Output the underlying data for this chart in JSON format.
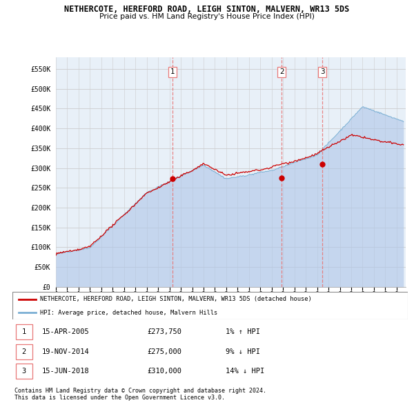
{
  "title": "NETHERCOTE, HEREFORD ROAD, LEIGH SINTON, MALVERN, WR13 5DS",
  "subtitle": "Price paid vs. HM Land Registry's House Price Index (HPI)",
  "legend_line1": "NETHERCOTE, HEREFORD ROAD, LEIGH SINTON, MALVERN, WR13 5DS (detached house)",
  "legend_line2": "HPI: Average price, detached house, Malvern Hills",
  "footer1": "Contains HM Land Registry data © Crown copyright and database right 2024.",
  "footer2": "This data is licensed under the Open Government Licence v3.0.",
  "transactions": [
    {
      "num": 1,
      "date": "15-APR-2005",
      "price": "£273,750",
      "hpi": "1% ↑ HPI",
      "year": 2005.29
    },
    {
      "num": 2,
      "date": "19-NOV-2014",
      "price": "£275,000",
      "hpi": "9% ↓ HPI",
      "year": 2014.88
    },
    {
      "num": 3,
      "date": "15-JUN-2018",
      "price": "£310,000",
      "hpi": "14% ↓ HPI",
      "year": 2018.45
    }
  ],
  "transaction_prices": [
    273750,
    275000,
    310000
  ],
  "ylim": [
    0,
    580000
  ],
  "yticks": [
    0,
    50000,
    100000,
    150000,
    200000,
    250000,
    300000,
    350000,
    400000,
    450000,
    500000,
    550000
  ],
  "ytick_labels": [
    "£0",
    "£50K",
    "£100K",
    "£150K",
    "£200K",
    "£250K",
    "£300K",
    "£350K",
    "£400K",
    "£450K",
    "£500K",
    "£550K"
  ],
  "hpi_color": "#aec6e8",
  "hpi_line_color": "#7bafd4",
  "price_color": "#cc0000",
  "vline_color": "#e87878",
  "marker_color": "#cc0000",
  "background_color": "#ffffff",
  "grid_color": "#cccccc",
  "chart_bg": "#e8f0f8"
}
